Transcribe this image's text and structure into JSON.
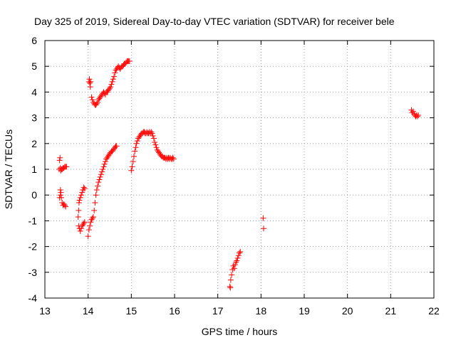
{
  "chart_data": {
    "type": "scatter",
    "title": "Day 325 of 2019, Sidereal Day-to-day VTEC variation (SDTVAR) for receiver bele",
    "xlabel": "GPS time / hours",
    "ylabel": "SDTVAR / TECUs",
    "xlim": [
      13,
      22
    ],
    "ylim": [
      -4,
      6
    ],
    "xticks": [
      "13",
      "14",
      "15",
      "16",
      "17",
      "18",
      "19",
      "20",
      "21",
      "22"
    ],
    "yticks": [
      "-4",
      "-3",
      "-2",
      "-1",
      "0",
      "1",
      "2",
      "3",
      "4",
      "5",
      "6"
    ],
    "grid": true,
    "marker": "plus",
    "series_color": "#ff0000",
    "series": [
      {
        "x": [
          13.33,
          13.34,
          13.35,
          13.36,
          13.37,
          13.38,
          13.4,
          13.42,
          13.44,
          13.46,
          13.48,
          13.5,
          13.36,
          13.37,
          13.34,
          13.36,
          13.38,
          13.4,
          13.42,
          13.44,
          13.46,
          13.48
        ],
        "y": [
          1.0,
          1.35,
          1.45,
          1.05,
          0.95,
          1.0,
          1.0,
          1.05,
          1.05,
          1.1,
          1.1,
          1.1,
          0.2,
          0.1,
          -0.1,
          0.0,
          -0.1,
          -0.3,
          -0.4,
          -0.35,
          -0.4,
          -0.45
        ]
      },
      {
        "x": [
          13.77,
          13.78,
          13.79,
          13.8,
          13.82,
          13.84,
          13.86,
          13.88,
          13.9,
          13.92,
          13.78,
          13.8,
          13.82,
          13.84,
          13.86,
          13.88,
          13.9,
          13.92
        ],
        "y": [
          -0.85,
          -0.6,
          -0.3,
          -0.2,
          -0.1,
          0.0,
          0.1,
          0.2,
          0.3,
          0.25,
          -1.2,
          -1.3,
          -1.4,
          -1.3,
          -1.2,
          -1.15,
          -1.1,
          -1.05
        ]
      },
      {
        "x": [
          14.0,
          14.02,
          14.04,
          14.06,
          14.08,
          14.1,
          14.12,
          14.14,
          14.16,
          14.18,
          14.2,
          14.22,
          14.24,
          14.26,
          14.28,
          14.3,
          14.32,
          14.34,
          14.36,
          14.38,
          14.4,
          14.42,
          14.44,
          14.46,
          14.48,
          14.5,
          14.52,
          14.54,
          14.56,
          14.58,
          14.6,
          14.62,
          14.64,
          14.66
        ],
        "y": [
          -1.6,
          -1.35,
          -1.2,
          -1.05,
          -0.95,
          -0.9,
          -0.85,
          -0.6,
          -0.3,
          0.0,
          0.2,
          0.35,
          0.5,
          0.6,
          0.7,
          0.8,
          0.9,
          1.0,
          1.1,
          1.2,
          1.3,
          1.4,
          1.45,
          1.5,
          1.55,
          1.6,
          1.65,
          1.7,
          1.7,
          1.75,
          1.8,
          1.85,
          1.9,
          1.9
        ]
      },
      {
        "x": [
          14.02,
          14.03,
          14.04,
          14.05,
          14.06,
          14.08,
          14.1,
          14.12,
          14.14,
          14.16,
          14.18,
          14.2,
          14.22,
          14.24,
          14.26,
          14.28,
          14.3,
          14.32,
          14.34,
          14.36,
          14.38,
          14.4,
          14.42,
          14.44,
          14.46,
          14.48,
          14.5,
          14.52,
          14.54,
          14.56,
          14.58,
          14.6,
          14.62,
          14.64,
          14.66,
          14.68,
          14.7,
          14.72,
          14.74,
          14.76,
          14.78,
          14.8,
          14.82,
          14.84,
          14.86,
          14.88,
          14.9,
          14.92,
          14.94,
          14.96
        ],
        "y": [
          4.4,
          4.5,
          4.35,
          4.2,
          4.4,
          3.8,
          3.7,
          3.6,
          3.55,
          3.5,
          3.5,
          3.55,
          3.6,
          3.7,
          3.75,
          3.8,
          3.85,
          3.9,
          3.95,
          4.0,
          3.95,
          3.9,
          4.0,
          4.0,
          4.05,
          4.1,
          4.15,
          4.2,
          4.3,
          4.4,
          4.5,
          4.6,
          4.75,
          4.85,
          4.9,
          4.95,
          5.0,
          4.95,
          4.9,
          4.95,
          5.0,
          5.0,
          5.05,
          5.1,
          5.1,
          5.15,
          5.2,
          5.2,
          5.2,
          5.2
        ]
      },
      {
        "x": [
          15.0,
          15.02,
          15.04,
          15.06,
          15.08,
          15.1,
          15.12,
          15.14,
          15.16,
          15.18,
          15.2,
          15.22,
          15.24,
          15.26,
          15.28,
          15.3,
          15.32,
          15.34,
          15.36,
          15.38,
          15.4,
          15.42,
          15.44,
          15.46,
          15.48,
          15.5,
          15.52,
          15.54,
          15.56,
          15.58,
          15.6,
          15.62,
          15.64,
          15.66,
          15.68,
          15.7,
          15.72,
          15.74,
          15.76,
          15.78,
          15.8,
          15.82,
          15.84,
          15.86,
          15.88,
          15.9,
          15.92,
          15.94,
          15.96,
          15.98
        ],
        "y": [
          0.95,
          1.1,
          1.3,
          1.5,
          1.7,
          1.85,
          2.0,
          2.1,
          2.2,
          2.25,
          2.3,
          2.35,
          2.4,
          2.4,
          2.45,
          2.45,
          2.4,
          2.4,
          2.45,
          2.4,
          2.4,
          2.45,
          2.4,
          2.45,
          2.4,
          2.3,
          2.2,
          2.05,
          1.95,
          1.85,
          1.75,
          1.7,
          1.65,
          1.6,
          1.55,
          1.5,
          1.5,
          1.45,
          1.45,
          1.45,
          1.4,
          1.45,
          1.4,
          1.45,
          1.4,
          1.45,
          1.4,
          1.4,
          1.45,
          1.4
        ]
      },
      {
        "x": [
          17.28,
          17.29,
          17.3,
          17.32,
          17.34,
          17.36,
          17.38,
          17.4,
          17.42,
          17.44,
          17.46,
          17.48,
          17.5,
          17.52
        ],
        "y": [
          -3.55,
          -3.6,
          -3.3,
          -3.1,
          -2.9,
          -2.75,
          -2.85,
          -2.7,
          -2.6,
          -2.55,
          -2.45,
          -2.35,
          -2.25,
          -2.2
        ]
      },
      {
        "x": [
          18.05,
          18.06
        ],
        "y": [
          -0.9,
          -1.3
        ]
      },
      {
        "x": [
          21.48,
          21.5,
          21.52,
          21.54,
          21.56,
          21.58,
          21.6,
          21.62,
          21.64
        ],
        "y": [
          3.3,
          3.2,
          3.25,
          3.15,
          3.1,
          3.05,
          3.1,
          3.05,
          3.1
        ]
      }
    ]
  }
}
